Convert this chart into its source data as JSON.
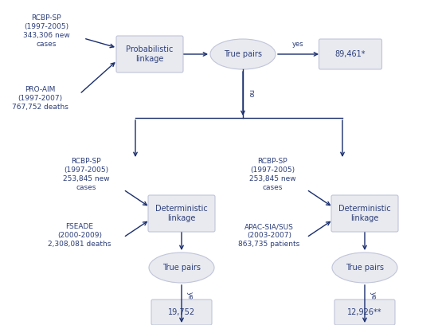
{
  "bg_color": "#ffffff",
  "node_fill": "#e8eaf0",
  "node_edge": "#c0c4d8",
  "arrow_color": "#1a2e6e",
  "text_color": "#2c3e7a",
  "top_text1": "RCBP-SP\n(1997-2005)\n343,306 new\ncases",
  "top_text2": "PRO-AIM\n(1997-2007)\n767,752 deaths",
  "prob_link_text": "Probabilistic\nlinkage",
  "true_pairs_text": "True pairs",
  "result1_text": "89,461*",
  "bl_text1": "RCBP-SP\n(1997-2005)\n253,845 new\ncases",
  "bl_text2": "FSEADE\n(2000-2009)\n2,308,081 deaths",
  "det_link1_text": "Deterministic\nlinkage",
  "result2_text": "19,752",
  "br_text1": "RCBP-SP\n(1997-2005)\n253,845 new\ncases",
  "br_text2": "APAC-SIA/SUS\n(2003-2007)\n863,735 patients",
  "det_link2_text": "Deterministic\nlinkage",
  "result3_text": "12,926**",
  "yes_label": "yes",
  "no_label": "no",
  "font_size_node": 7,
  "font_size_text": 6.5,
  "font_size_label": 6.0
}
